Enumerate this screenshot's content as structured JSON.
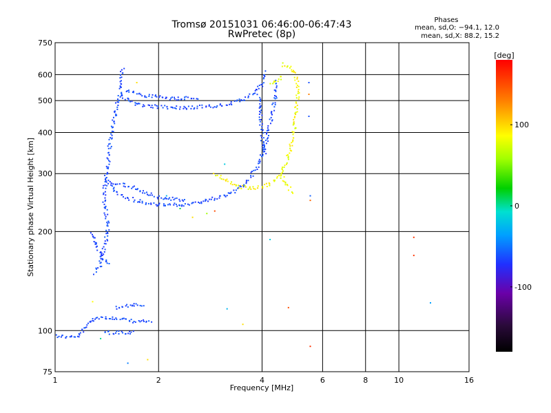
{
  "chart_data": {
    "type": "scatter",
    "title": "Tromsø 20151031 06:46:00-06:47:43",
    "subtitle": "RwPretec (8p)",
    "xlabel": "Frequency [MHz]",
    "ylabel": "Stationary phase Virtual Height [km]",
    "x_scale": "log",
    "y_scale": "log",
    "xlim": [
      1,
      16
    ],
    "ylim": [
      75,
      750
    ],
    "x_ticks": [
      1,
      2,
      4,
      6,
      8,
      10,
      16
    ],
    "y_ticks": [
      75,
      100,
      200,
      300,
      400,
      500,
      600,
      750
    ],
    "grid": true,
    "stats": {
      "title": "Phases",
      "line_o": "mean, sd,O: −94.1, 12.0",
      "line_x": "mean, sd,X: 88.2, 15.2"
    },
    "colorbar": {
      "label": "[deg]",
      "ticks": [
        100,
        0,
        -100
      ],
      "range": [
        -180,
        180
      ]
    },
    "series": [
      {
        "description": "O-mode trace",
        "phase_deg": -94,
        "segments": [
          [
            [
              1.0,
              97
            ],
            [
              1.08,
              96
            ],
            [
              1.15,
              96
            ],
            [
              1.2,
              100
            ],
            [
              1.25,
              107
            ],
            [
              1.3,
              110
            ],
            [
              1.4,
              110
            ],
            [
              1.5,
              109
            ],
            [
              1.6,
              108
            ],
            [
              1.75,
              107
            ],
            [
              1.9,
              107
            ]
          ],
          [
            [
              1.38,
              99
            ],
            [
              1.5,
              99
            ],
            [
              1.6,
              99
            ],
            [
              1.7,
              99
            ]
          ],
          [
            [
              1.5,
              118
            ],
            [
              1.65,
              120
            ],
            [
              1.8,
              120
            ]
          ],
          [
            [
              1.3,
              150
            ],
            [
              1.35,
              160
            ],
            [
              1.38,
              175
            ],
            [
              1.4,
              190
            ],
            [
              1.42,
              205
            ],
            [
              1.4,
              230
            ],
            [
              1.38,
              260
            ],
            [
              1.4,
              290
            ],
            [
              1.42,
              330
            ],
            [
              1.44,
              380
            ],
            [
              1.47,
              430
            ],
            [
              1.5,
              480
            ],
            [
              1.55,
              540
            ],
            [
              1.55,
              610
            ],
            [
              1.58,
              635
            ]
          ],
          [
            [
              1.27,
              200
            ],
            [
              1.32,
              180
            ],
            [
              1.38,
              165
            ],
            [
              1.45,
              160
            ]
          ],
          [
            [
              1.4,
              290
            ],
            [
              1.5,
              265
            ],
            [
              1.6,
              255
            ],
            [
              1.8,
              246
            ],
            [
              2.0,
              242
            ],
            [
              2.3,
              242
            ],
            [
              2.6,
              246
            ],
            [
              3.0,
              256
            ],
            [
              3.3,
              266
            ],
            [
              3.6,
              285
            ],
            [
              3.9,
              320
            ],
            [
              4.1,
              380
            ],
            [
              4.25,
              450
            ],
            [
              4.35,
              520
            ],
            [
              4.4,
              580
            ]
          ],
          [
            [
              1.45,
              285
            ],
            [
              1.7,
              272
            ],
            [
              2.0,
              255
            ],
            [
              2.4,
              250
            ]
          ],
          [
            [
              1.55,
              520
            ],
            [
              1.7,
              490
            ],
            [
              2.0,
              480
            ],
            [
              2.4,
              478
            ],
            [
              2.8,
              482
            ],
            [
              3.2,
              490
            ],
            [
              3.5,
              505
            ],
            [
              3.8,
              530
            ],
            [
              4.0,
              570
            ],
            [
              4.05,
              620
            ]
          ],
          [
            [
              1.6,
              540
            ],
            [
              1.8,
              520
            ],
            [
              2.2,
              510
            ],
            [
              2.6,
              512
            ]
          ],
          [
            [
              3.9,
              520
            ],
            [
              3.95,
              440
            ],
            [
              4.0,
              380
            ],
            [
              4.05,
              340
            ]
          ]
        ]
      },
      {
        "description": "X-mode trace",
        "phase_deg": 88,
        "segments": [
          [
            [
              2.9,
              300
            ],
            [
              3.1,
              290
            ],
            [
              3.4,
              275
            ],
            [
              3.8,
              272
            ],
            [
              4.2,
              280
            ],
            [
              4.5,
              300
            ],
            [
              4.7,
              330
            ],
            [
              4.85,
              370
            ],
            [
              4.95,
              420
            ],
            [
              5.0,
              470
            ],
            [
              5.05,
              520
            ],
            [
              5.05,
              560
            ],
            [
              4.95,
              610
            ],
            [
              4.8,
              635
            ],
            [
              4.5,
              650
            ]
          ],
          [
            [
              4.5,
              300
            ],
            [
              4.7,
              280
            ],
            [
              4.9,
              260
            ]
          ],
          [
            [
              4.2,
              565
            ],
            [
              4.4,
              580
            ],
            [
              4.6,
              600
            ]
          ]
        ]
      }
    ],
    "scatter_points": [
      {
        "x": 1.35,
        "y": 95,
        "phase_deg": 0
      },
      {
        "x": 1.28,
        "y": 123,
        "phase_deg": 90
      },
      {
        "x": 1.62,
        "y": 80,
        "phase_deg": -60
      },
      {
        "x": 1.85,
        "y": 82,
        "phase_deg": 100
      },
      {
        "x": 1.72,
        "y": 570,
        "phase_deg": 100
      },
      {
        "x": 2.1,
        "y": 258,
        "phase_deg": -30
      },
      {
        "x": 2.3,
        "y": 236,
        "phase_deg": 10
      },
      {
        "x": 2.5,
        "y": 222,
        "phase_deg": 100
      },
      {
        "x": 2.75,
        "y": 228,
        "phase_deg": 60
      },
      {
        "x": 2.9,
        "y": 232,
        "phase_deg": 150
      },
      {
        "x": 3.1,
        "y": 322,
        "phase_deg": -20
      },
      {
        "x": 3.15,
        "y": 117,
        "phase_deg": -30
      },
      {
        "x": 3.5,
        "y": 105,
        "phase_deg": 100
      },
      {
        "x": 4.2,
        "y": 190,
        "phase_deg": -20
      },
      {
        "x": 4.75,
        "y": 118,
        "phase_deg": 150
      },
      {
        "x": 5.5,
        "y": 90,
        "phase_deg": 160
      },
      {
        "x": 5.5,
        "y": 258,
        "phase_deg": -80
      },
      {
        "x": 5.5,
        "y": 250,
        "phase_deg": 140
      },
      {
        "x": 5.45,
        "y": 450,
        "phase_deg": -90
      },
      {
        "x": 5.45,
        "y": 570,
        "phase_deg": -90
      },
      {
        "x": 5.45,
        "y": 525,
        "phase_deg": 130
      },
      {
        "x": 11.0,
        "y": 193,
        "phase_deg": 160
      },
      {
        "x": 11.0,
        "y": 170,
        "phase_deg": 160
      },
      {
        "x": 12.3,
        "y": 122,
        "phase_deg": -40
      }
    ],
    "colors": {
      "grid": "#000000",
      "axis": "#000000"
    }
  }
}
